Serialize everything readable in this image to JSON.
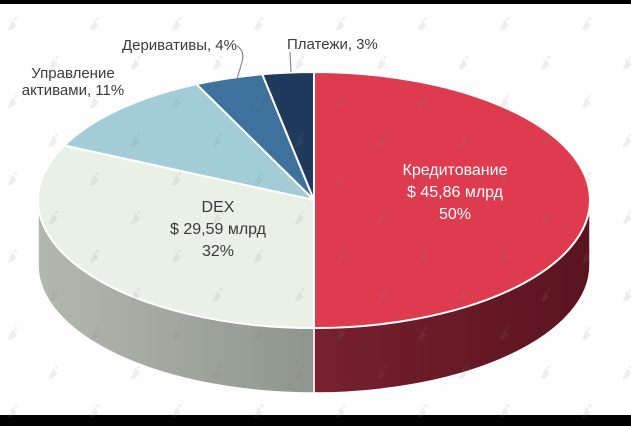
{
  "frame": {
    "letterbox_color": "#000000",
    "background": "#FEFEFE"
  },
  "watermark": {
    "icon": "forklog-logo-watermark-icon",
    "color": "rgba(128,128,128,0.13)"
  },
  "chart_data": {
    "type": "pie",
    "style": "3d",
    "title": "",
    "legend": "none",
    "start_angle_deg": 0,
    "direction": "clockwise",
    "slices": [
      {
        "label": "Кредитование",
        "amount": "$ 45,86 млрд",
        "percent": 50,
        "percent_label": "50%",
        "color": "#DE3B4E",
        "side_gradient": [
          "#78202F",
          "#5A141F"
        ],
        "label_position": "inside"
      },
      {
        "label": "DEX",
        "amount": "$ 29,59 млрд",
        "percent": 32,
        "percent_label": "32%",
        "color": "#E9F1E7",
        "side_gradient": [
          "#B2B8AF",
          "#8F968D"
        ],
        "label_position": "inside"
      },
      {
        "label": "Управление активами",
        "percent": 11,
        "callout_line1": "Управление",
        "callout_line2": "активами, 11%",
        "color": "#A3CDD6",
        "label_position": "outside"
      },
      {
        "label": "Деривативы",
        "percent": 4,
        "callout": "Деривативы, 4%",
        "color": "#3E719B",
        "label_position": "outside"
      },
      {
        "label": "Платежи",
        "percent": 3,
        "callout": "Платежи, 3%",
        "color": "#1F3A5C",
        "label_position": "outside"
      }
    ],
    "text_colors": {
      "inside_light": "#FFFFFF",
      "inside_dark": "#3A3A3A",
      "outside": "#3C3C3C"
    }
  }
}
